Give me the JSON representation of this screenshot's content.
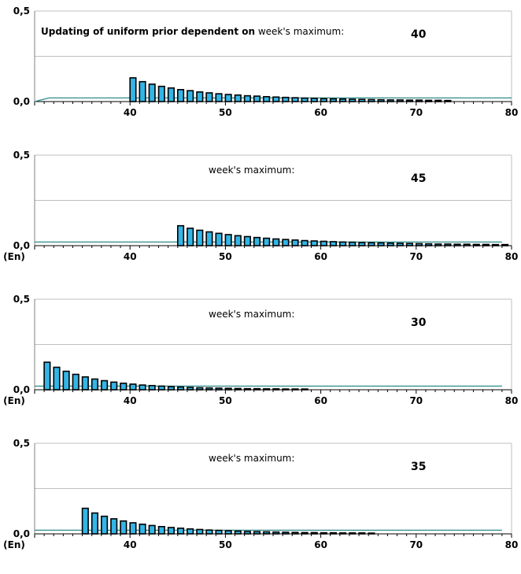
{
  "chart_data": [
    {
      "type": "bar",
      "title_bold": "Updating of uniform prior dependent on",
      "title_normal": " week's maximum:",
      "max_label": "40",
      "xlabel": "",
      "xlim": [
        30,
        80
      ],
      "ylim": [
        0,
        0.5
      ],
      "y_ticks": [
        "0,0",
        "0,5"
      ],
      "x_ticks": [
        "40",
        "50",
        "60",
        "70",
        "80"
      ],
      "x_tick_values": [
        40,
        50,
        60,
        70,
        80
      ],
      "gridlines_y": [
        0.25,
        0.5
      ],
      "prior_line": {
        "from_x": 30,
        "ramp_to_x": 31.5,
        "value": 0.02,
        "to_x": 80
      },
      "bars": {
        "x_start": 40,
        "values": [
          0.131,
          0.11,
          0.096,
          0.084,
          0.075,
          0.066,
          0.06,
          0.053,
          0.048,
          0.043,
          0.039,
          0.036,
          0.032,
          0.03,
          0.027,
          0.025,
          0.023,
          0.021,
          0.019,
          0.018,
          0.016,
          0.015,
          0.014,
          0.013,
          0.012,
          0.011,
          0.01,
          0.009,
          0.009,
          0.008,
          0.008,
          0.007,
          0.007,
          0.006
        ]
      },
      "colors": {
        "bar_fill": "#33b5e5",
        "bar_outline": "#000000",
        "prior_line": "#2e8b8b",
        "grid": "#bfbfbf"
      }
    },
    {
      "type": "bar",
      "title_bold": "",
      "title_normal": "week's maximum:",
      "max_label": "45",
      "xlabel": "(En)",
      "xlim": [
        30,
        80
      ],
      "ylim": [
        0,
        0.5
      ],
      "y_ticks": [
        "0,0",
        "0,5"
      ],
      "x_ticks": [
        "40",
        "50",
        "60",
        "70",
        "80"
      ],
      "x_tick_values": [
        40,
        50,
        60,
        70,
        80
      ],
      "gridlines_y": [
        0.25,
        0.5
      ],
      "prior_line": {
        "from_x": 30,
        "value": 0.02,
        "to_x": 79
      },
      "bars": {
        "x_start": 45,
        "values": [
          0.11,
          0.096,
          0.085,
          0.076,
          0.068,
          0.061,
          0.055,
          0.05,
          0.045,
          0.041,
          0.037,
          0.034,
          0.031,
          0.028,
          0.026,
          0.024,
          0.022,
          0.02,
          0.019,
          0.017,
          0.016,
          0.015,
          0.014,
          0.013,
          0.012,
          0.011,
          0.01,
          0.009,
          0.009,
          0.008,
          0.008,
          0.007,
          0.007,
          0.006,
          0.006
        ]
      },
      "colors": {
        "bar_fill": "#33b5e5",
        "bar_outline": "#000000",
        "prior_line": "#2e8b8b",
        "grid": "#bfbfbf"
      }
    },
    {
      "type": "bar",
      "title_bold": "",
      "title_normal": "week's maximum:",
      "max_label": "30",
      "xlabel": "(En)",
      "xlim": [
        30,
        80
      ],
      "ylim": [
        0,
        0.5
      ],
      "y_ticks": [
        "0,0",
        "0,5"
      ],
      "x_ticks": [
        "40",
        "50",
        "60",
        "70",
        "80"
      ],
      "x_tick_values": [
        40,
        50,
        60,
        70,
        80
      ],
      "gridlines_y": [
        0.25,
        0.5
      ],
      "prior_line": {
        "from_x": 30,
        "value": 0.02,
        "to_x": 79
      },
      "bars": {
        "x_start": 31,
        "values": [
          0.152,
          0.124,
          0.102,
          0.085,
          0.071,
          0.059,
          0.05,
          0.042,
          0.036,
          0.031,
          0.026,
          0.023,
          0.02,
          0.017,
          0.015,
          0.013,
          0.011,
          0.01,
          0.009,
          0.008,
          0.007,
          0.006,
          0.006,
          0.005,
          0.005,
          0.004,
          0.004,
          0.004
        ]
      },
      "colors": {
        "bar_fill": "#33b5e5",
        "bar_outline": "#000000",
        "prior_line": "#2e8b8b",
        "grid": "#bfbfbf"
      }
    },
    {
      "type": "bar",
      "title_bold": "",
      "title_normal": "week's maximum:",
      "max_label": "35",
      "xlabel": "(En)",
      "xlim": [
        30,
        80
      ],
      "ylim": [
        0,
        0.5
      ],
      "y_ticks": [
        "0,0",
        "0,5"
      ],
      "x_ticks": [
        "40",
        "50",
        "60",
        "70",
        "80"
      ],
      "x_tick_values": [
        40,
        50,
        60,
        70,
        80
      ],
      "gridlines_y": [
        0.25,
        0.5
      ],
      "prior_line": {
        "from_x": 30,
        "value": 0.02,
        "to_x": 79
      },
      "bars": {
        "x_start": 35,
        "values": [
          0.141,
          0.115,
          0.097,
          0.083,
          0.071,
          0.061,
          0.053,
          0.046,
          0.04,
          0.035,
          0.031,
          0.027,
          0.024,
          0.021,
          0.019,
          0.017,
          0.015,
          0.013,
          0.012,
          0.011,
          0.01,
          0.009,
          0.008,
          0.007,
          0.007,
          0.006,
          0.006,
          0.005,
          0.005,
          0.005,
          0.004
        ]
      },
      "colors": {
        "bar_fill": "#33b5e5",
        "bar_outline": "#000000",
        "prior_line": "#2e8b8b",
        "grid": "#bfbfbf"
      }
    }
  ]
}
